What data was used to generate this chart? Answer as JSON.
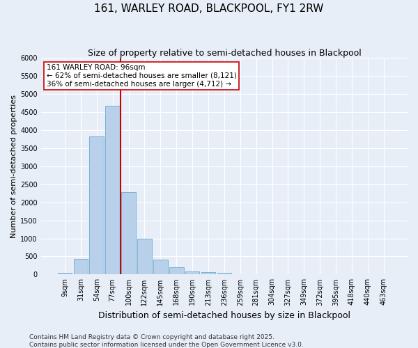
{
  "title": "161, WARLEY ROAD, BLACKPOOL, FY1 2RW",
  "subtitle": "Size of property relative to semi-detached houses in Blackpool",
  "xlabel": "Distribution of semi-detached houses by size in Blackpool",
  "ylabel": "Number of semi-detached properties",
  "categories": [
    "9sqm",
    "31sqm",
    "54sqm",
    "77sqm",
    "100sqm",
    "122sqm",
    "145sqm",
    "168sqm",
    "190sqm",
    "213sqm",
    "236sqm",
    "259sqm",
    "281sqm",
    "304sqm",
    "327sqm",
    "349sqm",
    "372sqm",
    "395sqm",
    "418sqm",
    "440sqm",
    "463sqm"
  ],
  "values": [
    50,
    440,
    3820,
    4670,
    2290,
    990,
    405,
    200,
    85,
    70,
    50,
    0,
    0,
    0,
    0,
    0,
    0,
    0,
    0,
    0,
    0
  ],
  "bar_color": "#b8d0ea",
  "bar_edge_color": "#6aabd2",
  "vline_color": "#cc0000",
  "vline_index": 3.5,
  "annotation_text": "161 WARLEY ROAD: 96sqm\n← 62% of semi-detached houses are smaller (8,121)\n36% of semi-detached houses are larger (4,712) →",
  "annotation_box_color": "#ffffff",
  "annotation_box_edge": "#cc0000",
  "ylim": [
    0,
    6000
  ],
  "yticks": [
    0,
    500,
    1000,
    1500,
    2000,
    2500,
    3000,
    3500,
    4000,
    4500,
    5000,
    5500,
    6000
  ],
  "background_color": "#e8eef8",
  "grid_color": "#ffffff",
  "footer": "Contains HM Land Registry data © Crown copyright and database right 2025.\nContains public sector information licensed under the Open Government Licence v3.0.",
  "title_fontsize": 11,
  "subtitle_fontsize": 9,
  "xlabel_fontsize": 9,
  "ylabel_fontsize": 8,
  "tick_fontsize": 7,
  "annotation_fontsize": 7.5,
  "footer_fontsize": 6.5
}
